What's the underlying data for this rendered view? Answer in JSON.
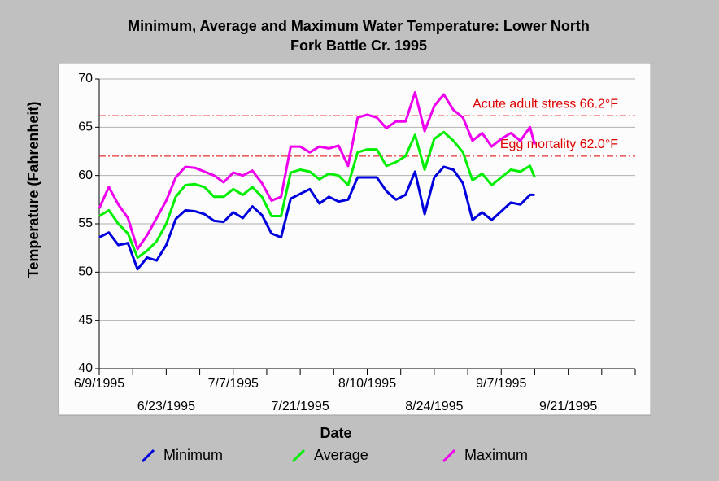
{
  "chart_data": {
    "type": "line",
    "title": [
      "Minimum, Average and Maximum Water Temperature: Lower North",
      "Fork Battle Cr. 1995"
    ],
    "x_label": "Date",
    "y_label": "Temperature (Fahrenheit)",
    "x": [
      0,
      2,
      4,
      6,
      8,
      10,
      12,
      14,
      16,
      18,
      20,
      22,
      24,
      26,
      28,
      30,
      32,
      34,
      36,
      38,
      40,
      42,
      44,
      46,
      48,
      50,
      52,
      54,
      56,
      58,
      60,
      62,
      64,
      66,
      68,
      70,
      72,
      74,
      76,
      78,
      80,
      82,
      84,
      86,
      88,
      90,
      91
    ],
    "series": [
      {
        "name": "Minimum",
        "color": "#0000dd",
        "values": [
          53.6,
          54.1,
          52.8,
          53.0,
          50.3,
          51.5,
          51.2,
          52.8,
          55.5,
          56.4,
          56.3,
          56.0,
          55.3,
          55.2,
          56.2,
          55.6,
          56.8,
          55.9,
          54.0,
          53.6,
          57.6,
          58.1,
          58.6,
          57.1,
          57.8,
          57.3,
          57.5,
          59.8,
          59.8,
          59.8,
          58.4,
          57.5,
          58.0,
          60.4,
          56.0,
          59.8,
          60.9,
          60.6,
          59.2,
          55.4,
          56.2,
          55.4,
          56.3,
          57.2,
          57.0,
          58.0,
          58.0
        ]
      },
      {
        "name": "Average",
        "color": "#00ee00",
        "values": [
          55.8,
          56.4,
          55.0,
          54.0,
          51.5,
          52.2,
          53.2,
          55.0,
          57.8,
          59.0,
          59.1,
          58.8,
          57.8,
          57.8,
          58.6,
          58.0,
          58.8,
          57.8,
          55.8,
          55.8,
          60.3,
          60.6,
          60.4,
          59.6,
          60.2,
          60.0,
          59.0,
          62.4,
          62.7,
          62.7,
          61.0,
          61.4,
          62.0,
          64.2,
          60.6,
          63.8,
          64.5,
          63.6,
          62.4,
          59.5,
          60.2,
          59.0,
          59.8,
          60.6,
          60.4,
          61.0,
          59.8
        ]
      },
      {
        "name": "Maximum",
        "color": "#ee00ee",
        "values": [
          56.6,
          58.8,
          57.0,
          55.6,
          52.4,
          53.8,
          55.6,
          57.4,
          59.8,
          60.9,
          60.8,
          60.4,
          60.0,
          59.3,
          60.3,
          60.0,
          60.5,
          59.2,
          57.4,
          57.8,
          63.0,
          63.0,
          62.4,
          63.0,
          62.8,
          63.1,
          61.0,
          66.0,
          66.3,
          66.0,
          64.9,
          65.6,
          65.6,
          68.6,
          64.6,
          67.2,
          68.4,
          66.8,
          66.0,
          63.6,
          64.4,
          63.0,
          63.8,
          64.4,
          63.6,
          65.0,
          63.2
        ]
      }
    ],
    "reference_lines": [
      {
        "label": "Acute adult stress 66.2°F",
        "value": 66.2,
        "color": "#dd0000"
      },
      {
        "label": "Egg mortality 62.0°F",
        "value": 62.0,
        "color": "#dd0000"
      }
    ],
    "xlim": [
      0,
      112
    ],
    "xticks": [
      {
        "value": 0,
        "label": "6/9/1995"
      },
      {
        "value": 14,
        "label": "6/23/1995"
      },
      {
        "value": 28,
        "label": "7/7/1995"
      },
      {
        "value": 42,
        "label": "7/21/1995"
      },
      {
        "value": 56,
        "label": "8/10/1995"
      },
      {
        "value": 70,
        "label": "8/24/1995"
      },
      {
        "value": 84,
        "label": "9/7/1995"
      },
      {
        "value": 98,
        "label": "9/21/1995"
      }
    ],
    "minor_xticks": [
      7,
      21,
      35,
      49,
      63,
      77,
      91,
      105,
      112
    ],
    "ylim": [
      40,
      70
    ],
    "yticks": [
      40,
      45,
      50,
      55,
      60,
      65,
      70
    ],
    "grid": true
  }
}
